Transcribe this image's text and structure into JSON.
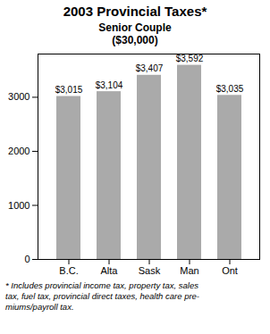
{
  "chart_data": {
    "type": "bar",
    "title": "2003 Provincial Taxes*",
    "subtitle": "Senior Couple\n($30,000)",
    "categories": [
      "B.C.",
      "Alta",
      "Sask",
      "Man",
      "Ont"
    ],
    "values": [
      3015,
      3104,
      3407,
      3592,
      3035
    ],
    "value_labels": [
      "$3,015",
      "$3,104",
      "$3,407",
      "$3,592",
      "$3,035"
    ],
    "data_labels": true,
    "color": "#aaaaaa",
    "ylim": [
      0,
      3800
    ],
    "yticks": [
      0,
      1000,
      2000,
      3000
    ],
    "grid": false,
    "annotations": [
      "* Includes provincial income tax, property tax, sales",
      "tax, fuel tax, provincial direct taxes, health care pre-",
      "miums/payroll tax."
    ]
  }
}
